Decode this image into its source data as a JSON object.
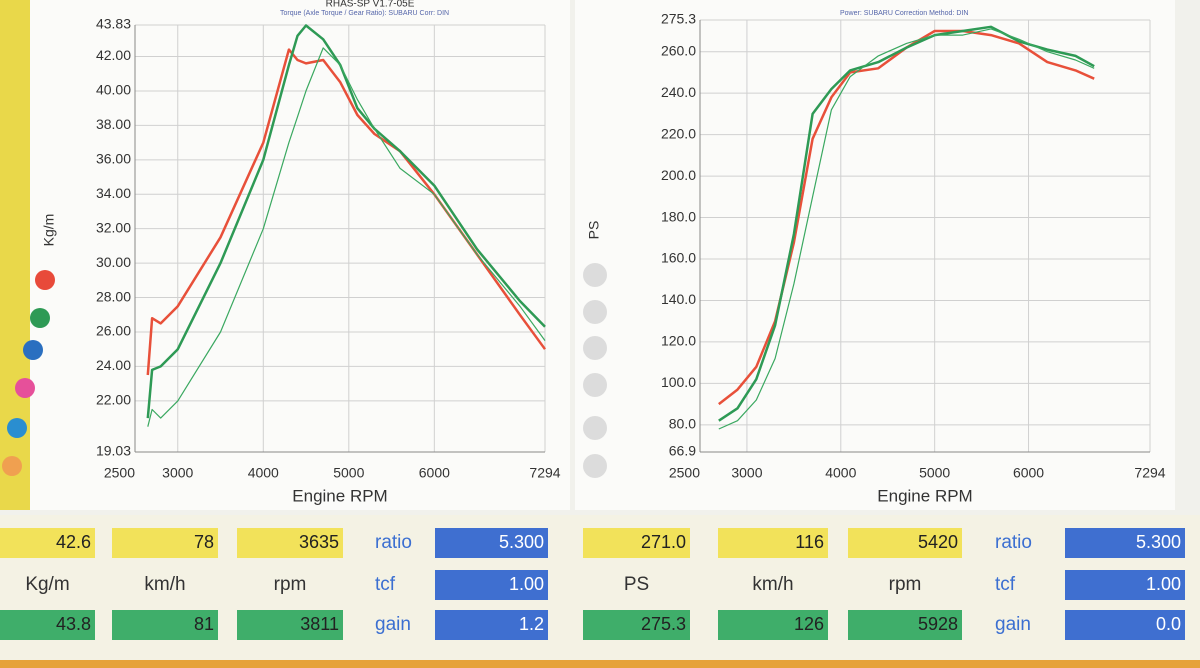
{
  "chart_data": [
    {
      "type": "line",
      "title": "RHAS-SP V1.7-05E",
      "subtitle": "Torque (Axle Torque / Gear Ratio): SUBARU  Corr: DIN",
      "x_label": "Engine RPM",
      "y_label": "Kg/m",
      "xlim": [
        2500,
        7294
      ],
      "xticks": [
        2500,
        3000,
        4000,
        5000,
        6000,
        7294
      ],
      "ylim": [
        19.03,
        43.83
      ],
      "yticks": [
        19.03,
        {
          "value": 22,
          "label": "22.00"
        },
        {
          "value": 24,
          "label": "24.00"
        },
        {
          "value": 26,
          "label": "26.00"
        },
        {
          "value": 28,
          "label": "28.00"
        },
        {
          "value": 30,
          "label": "30.00"
        },
        {
          "value": 32,
          "label": "32.00"
        },
        {
          "value": 34,
          "label": "34.00"
        },
        {
          "value": 36,
          "label": "36.00"
        },
        {
          "value": 38,
          "label": "38.00"
        },
        {
          "value": 40,
          "label": "40.00"
        },
        {
          "value": 42,
          "label": "42.00"
        },
        43.83
      ],
      "grid": true,
      "series": [
        {
          "color": "#e8503a",
          "linewidth": 2.5,
          "x": [
            2650,
            2700,
            2800,
            3000,
            3500,
            4000,
            4300,
            4400,
            4500,
            4700,
            4900,
            5100,
            5300,
            5600,
            6000,
            6500,
            7000,
            7294
          ],
          "values": [
            23.5,
            26.8,
            26.5,
            27.5,
            31.5,
            37,
            42.4,
            41.8,
            41.6,
            41.8,
            40.5,
            38.6,
            37.5,
            36.5,
            34,
            30.5,
            27,
            25
          ]
        },
        {
          "color": "#2e9a55",
          "linewidth": 2.5,
          "x": [
            2650,
            2700,
            2800,
            3000,
            3500,
            4000,
            4300,
            4400,
            4500,
            4700,
            4900,
            5100,
            5300,
            5600,
            6000,
            6500,
            7000,
            7294
          ],
          "values": [
            21,
            23.8,
            24,
            25,
            30,
            36,
            41.5,
            43.2,
            43.8,
            43,
            41.5,
            39,
            37.8,
            36.5,
            34.5,
            30.8,
            27.8,
            26.3
          ]
        },
        {
          "color": "#3aa860",
          "linewidth": 1.2,
          "x": [
            2650,
            2700,
            2800,
            3000,
            3500,
            4000,
            4300,
            4400,
            4500,
            4700,
            4900,
            5100,
            5300,
            5600,
            6000,
            6500,
            7000,
            7294
          ],
          "values": [
            20.5,
            21.5,
            21,
            22,
            26,
            32,
            37,
            38.5,
            40,
            42.5,
            41.5,
            39.5,
            37.8,
            35.5,
            34,
            30.5,
            27.5,
            25.5
          ]
        }
      ]
    },
    {
      "type": "line",
      "subtitle": "Power: SUBARU  Correction Method: DIN",
      "x_label": "Engine RPM",
      "y_label": "PS",
      "xlim": [
        2500,
        7294
      ],
      "xticks": [
        2500,
        3000,
        4000,
        5000,
        6000,
        7294
      ],
      "ylim": [
        66.9,
        275.3
      ],
      "yticks": [
        66.9,
        {
          "value": 80,
          "label": "80.0"
        },
        {
          "value": 100,
          "label": "100.0"
        },
        {
          "value": 120,
          "label": "120.0"
        },
        {
          "value": 140,
          "label": "140.0"
        },
        {
          "value": 160,
          "label": "160.0"
        },
        {
          "value": 180,
          "label": "180.0"
        },
        {
          "value": 200,
          "label": "200.0"
        },
        {
          "value": 220,
          "label": "220.0"
        },
        {
          "value": 240,
          "label": "240.0"
        },
        {
          "value": 260,
          "label": "260.0"
        },
        275.3
      ],
      "grid": true,
      "series": [
        {
          "color": "#e8503a",
          "linewidth": 2.5,
          "x": [
            2700,
            2900,
            3100,
            3300,
            3500,
            3700,
            3900,
            4100,
            4400,
            4700,
            5000,
            5300,
            5600,
            5900,
            6200,
            6500,
            6700
          ],
          "values": [
            90,
            97,
            108,
            130,
            168,
            218,
            238,
            250,
            252,
            262,
            270,
            270,
            268,
            264,
            255,
            251,
            247
          ]
        },
        {
          "color": "#2e9a55",
          "linewidth": 2.5,
          "x": [
            2700,
            2900,
            3100,
            3300,
            3500,
            3700,
            3900,
            4100,
            4400,
            4700,
            5000,
            5300,
            5600,
            5900,
            6200,
            6500,
            6700
          ],
          "values": [
            82,
            88,
            102,
            128,
            172,
            230,
            242,
            251,
            255,
            262,
            268,
            270,
            272,
            265,
            261,
            258,
            253
          ]
        },
        {
          "color": "#3aa860",
          "linewidth": 1.2,
          "x": [
            2700,
            2900,
            3100,
            3300,
            3500,
            3700,
            3900,
            4100,
            4400,
            4700,
            5000,
            5300,
            5600,
            5900,
            6200,
            6500,
            6700
          ],
          "values": [
            78,
            82,
            92,
            112,
            148,
            190,
            232,
            248,
            258,
            264,
            268,
            268,
            271,
            266,
            260,
            256,
            252
          ]
        }
      ]
    }
  ],
  "readouts": [
    {
      "current": [
        "42.6",
        "78",
        "3635"
      ],
      "units": [
        "Kg/m",
        "km/h",
        "rpm"
      ],
      "peak": [
        "43.8",
        "81",
        "3811"
      ],
      "ratio_label": "ratio",
      "ratio": "5.300",
      "tcf_label": "tcf",
      "tcf": "1.00",
      "gain_label": "gain",
      "gain": "1.2"
    },
    {
      "current": [
        "271.0",
        "116",
        "5420"
      ],
      "units": [
        "PS",
        "km/h",
        "rpm"
      ],
      "peak": [
        "275.3",
        "126",
        "5928"
      ],
      "ratio_label": "ratio",
      "ratio": "5.300",
      "tcf_label": "tcf",
      "tcf": "1.00",
      "gain_label": "gain",
      "gain": "0.0"
    }
  ]
}
